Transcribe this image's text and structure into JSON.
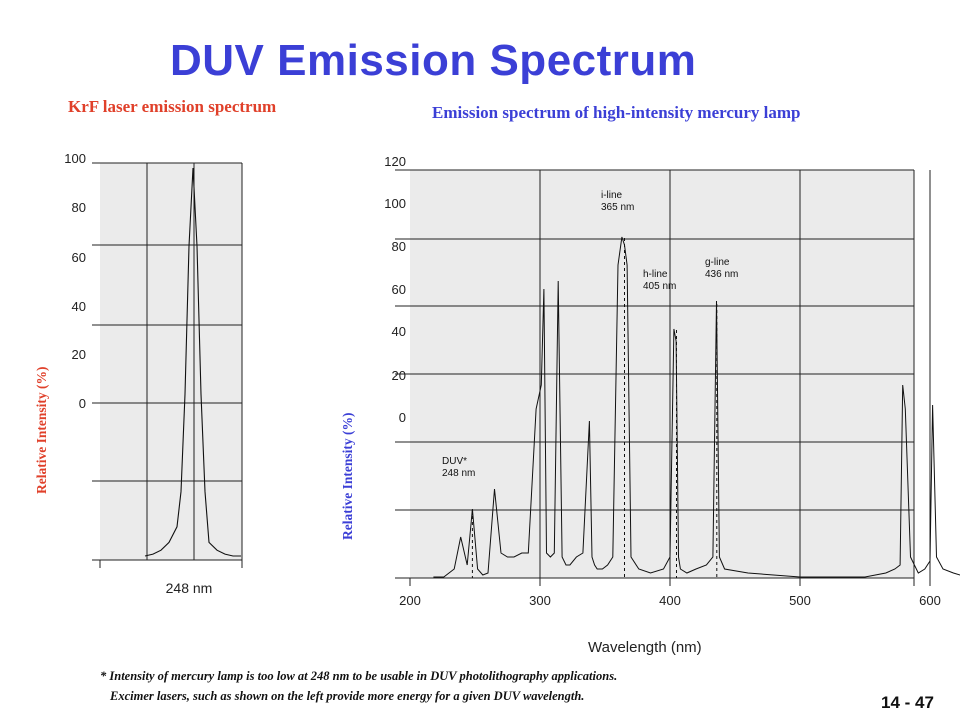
{
  "title": "DUV Emission Spectrum",
  "slide_number": "14 - 47",
  "footnote": {
    "line1": "* Intensity of mercury lamp is too low at 248 nm to be usable in DUV photolithography applications.",
    "line2": "Excimer lasers, such as shown on the left provide more energy for a given DUV wavelength."
  },
  "colors": {
    "title": "#3b3fd6",
    "krf": "#e0402a",
    "plot_bg": "#ebebeb"
  },
  "chart_data": [
    {
      "type": "line",
      "title": "KrF laser emission spectrum",
      "ylabel": "Relative Intensity (%)",
      "xlabel": "",
      "y_tick_labels": [
        "100",
        "80",
        "60",
        "40",
        "20",
        "0"
      ],
      "x_tick_labels": [
        "248 nm"
      ],
      "x": [
        -6,
        -5,
        -4,
        -3,
        -2,
        -1.5,
        -1,
        -0.5,
        0,
        0.5,
        1,
        1.5,
        2,
        3,
        4,
        5,
        6
      ],
      "y": [
        0.5,
        1,
        2,
        4,
        8,
        17,
        42,
        80,
        100,
        80,
        42,
        17,
        4,
        2,
        1,
        0.5,
        0.5
      ],
      "grid": true
    },
    {
      "type": "line",
      "title": "Emission spectrum of high-intensity mercury lamp",
      "xlabel": "Wavelength (nm)",
      "ylabel": "Relative Intensity (%)",
      "y_tick_labels": [
        "120",
        "100",
        "80",
        "60",
        "40",
        "20",
        "0"
      ],
      "x_tick_labels": [
        "200",
        "300",
        "400",
        "500",
        "600"
      ],
      "xlim": [
        200,
        640
      ],
      "ylim": [
        0,
        100
      ],
      "grid": true,
      "annotations": [
        {
          "text": [
            "DUV*",
            "248 nm"
          ],
          "x": 248
        },
        {
          "text": [
            "i-line",
            "365 nm"
          ],
          "x": 365
        },
        {
          "text": [
            "h-line",
            "405 nm"
          ],
          "x": 405
        },
        {
          "text": [
            "g-line",
            "436 nm"
          ],
          "x": 436
        }
      ],
      "x": [
        218,
        226,
        234,
        239,
        244,
        248,
        252,
        256,
        260,
        265,
        270,
        275,
        280,
        286,
        291,
        297,
        301,
        303,
        305,
        308,
        311,
        314,
        317,
        320,
        323,
        328,
        333,
        338,
        340,
        342,
        344,
        348,
        352,
        356,
        360,
        363,
        365,
        367,
        370,
        376,
        385,
        395,
        400,
        403,
        404.7,
        406.5,
        408,
        413,
        420,
        428,
        433,
        435.8,
        438,
        442,
        460,
        500,
        550,
        566,
        573,
        577,
        579,
        581,
        585,
        591,
        596,
        600,
        602,
        605,
        610,
        618,
        628
      ],
      "y": [
        0,
        0,
        2,
        10,
        3,
        17,
        2,
        0.5,
        1,
        22,
        6,
        5,
        5,
        6,
        6,
        42,
        48,
        72,
        6,
        5,
        6,
        74,
        5,
        3,
        3,
        5,
        6,
        39,
        5,
        3,
        2,
        2,
        3,
        5,
        78,
        85,
        83,
        78,
        5,
        2,
        1,
        2,
        5,
        62,
        59,
        5,
        2,
        1,
        2,
        3,
        5,
        69,
        5,
        2,
        1,
        0,
        0,
        1,
        2,
        3,
        48,
        42,
        5,
        1,
        2,
        4,
        43,
        5,
        2,
        1,
        0
      ]
    }
  ]
}
